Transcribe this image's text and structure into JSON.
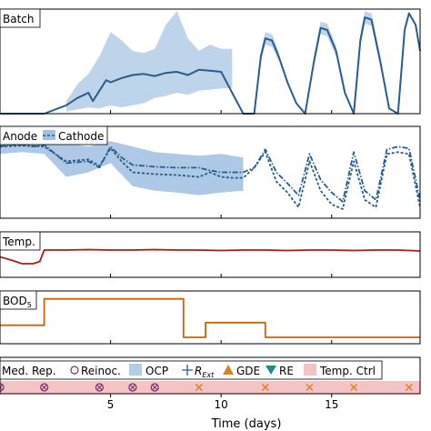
{
  "chart_data": {
    "type": "line",
    "xlabel": "Time (days)",
    "xlim": [
      0,
      19
    ],
    "xticks": [
      5,
      10,
      15
    ],
    "colors": {
      "batch": "#2a5d8c",
      "batch_band": "#b3cde6",
      "anode": "#2a5d8c",
      "anode_band": "#9fc0e0",
      "temp": "#a51e1e",
      "bod": "#c8640a",
      "tempctrl": "#f4c4c4",
      "reinoc": "#7a2d6a",
      "gde": "#d9801f"
    },
    "panels": [
      {
        "label": "Batch",
        "ylim": [
          0,
          1
        ],
        "series": [
          {
            "x": [
              0,
              1,
              2,
              3,
              3.5,
              4,
              4.2,
              4.5,
              4.8,
              5,
              5.5,
              6,
              6.5,
              7,
              7.5,
              8,
              8.5,
              9,
              9.5,
              10,
              10.5,
              11,
              11.5,
              11.8,
              12,
              12.3,
              12.6,
              13,
              13.4,
              13.8,
              14.2,
              14.5,
              14.8,
              15.2,
              15.6,
              16,
              16.3,
              16.5,
              16.8,
              17.2,
              17.6,
              18,
              18.3,
              18.5,
              18.8,
              19
            ],
            "y": [
              0,
              0,
              0,
              0.08,
              0.15,
              0.2,
              0.12,
              0.22,
              0.32,
              0.3,
              0.34,
              0.37,
              0.38,
              0.36,
              0.39,
              0.4,
              0.37,
              0.42,
              0.41,
              0.4,
              0.2,
              0.0,
              0.0,
              0.55,
              0.72,
              0.7,
              0.55,
              0.3,
              0.1,
              0.0,
              0.5,
              0.82,
              0.8,
              0.6,
              0.2,
              0.0,
              0.7,
              0.92,
              0.9,
              0.5,
              0.05,
              0.0,
              0.8,
              0.96,
              0.85,
              0.6
            ]
          }
        ],
        "band": {
          "x": [
            3,
            3.5,
            4,
            4.5,
            5,
            5.5,
            6,
            6.5,
            7,
            7.5,
            8,
            8.5,
            9,
            9.5,
            10,
            10.5
          ],
          "lower": [
            0.02,
            0.04,
            0.06,
            0.05,
            0.08,
            0.06,
            0.08,
            0.1,
            0.15,
            0.17,
            0.2,
            0.18,
            0.22,
            0.23,
            0.24,
            0.25
          ],
          "upper": [
            0.12,
            0.28,
            0.38,
            0.55,
            0.78,
            0.7,
            0.6,
            0.58,
            0.62,
            0.85,
            0.98,
            0.72,
            0.6,
            0.66,
            0.62,
            0.62
          ]
        },
        "local_bands": [
          {
            "x": [
              11.8,
              12,
              12.3,
              12.6
            ],
            "lower": [
              0.5,
              0.66,
              0.64,
              0.5
            ],
            "upper": [
              0.6,
              0.78,
              0.76,
              0.6
            ]
          },
          {
            "x": [
              14.2,
              14.5,
              14.8,
              15.2
            ],
            "lower": [
              0.45,
              0.76,
              0.74,
              0.55
            ],
            "upper": [
              0.55,
              0.88,
              0.86,
              0.65
            ]
          },
          {
            "x": [
              16.3,
              16.5,
              16.8,
              17.2
            ],
            "lower": [
              0.64,
              0.86,
              0.84,
              0.45
            ],
            "upper": [
              0.76,
              0.98,
              0.96,
              0.55
            ]
          }
        ]
      },
      {
        "label": "Anode",
        "legend_entry": "Cathode",
        "ylim": [
          0,
          1
        ],
        "series": [
          {
            "x": [
              0,
              0.5,
              1,
              1.5,
              2,
              3,
              4,
              4.5,
              5,
              5.5,
              6,
              7,
              8,
              9,
              9.5,
              10,
              10.5,
              11,
              11.5,
              12,
              12.5,
              13,
              13.5,
              14,
              14.5,
              15,
              15.5,
              16,
              16.5,
              17,
              17.5,
              18,
              18.5,
              19
            ],
            "y": [
              0.78,
              0.8,
              0.8,
              0.78,
              0.8,
              0.6,
              0.62,
              0.55,
              0.78,
              0.66,
              0.58,
              0.56,
              0.55,
              0.55,
              0.52,
              0.5,
              0.5,
              0.5,
              0.55,
              0.75,
              0.5,
              0.38,
              0.25,
              0.7,
              0.42,
              0.28,
              0.18,
              0.72,
              0.3,
              0.2,
              0.75,
              0.78,
              0.76,
              0.2
            ]
          },
          {
            "x": [
              0,
              1,
              2,
              3,
              4,
              4.5,
              5,
              5.5,
              6,
              7,
              8,
              9,
              9.5,
              10,
              10.5,
              11,
              11.5,
              12,
              12.5,
              13,
              13.5,
              14,
              14.5,
              15,
              15.5,
              16,
              16.5,
              17,
              17.5,
              18,
              18.5,
              19
            ],
            "y": [
              0.78,
              0.79,
              0.78,
              0.62,
              0.64,
              0.57,
              0.76,
              0.62,
              0.5,
              0.48,
              0.47,
              0.45,
              0.5,
              0.45,
              0.44,
              0.44,
              0.55,
              0.72,
              0.4,
              0.28,
              0.12,
              0.62,
              0.3,
              0.15,
              0.1,
              0.62,
              0.2,
              0.12,
              0.7,
              0.72,
              0.7,
              0.12
            ]
          }
        ],
        "band": {
          "x": [
            0,
            1,
            2,
            3,
            4,
            5,
            6,
            7,
            8,
            9,
            10,
            11
          ],
          "lower": [
            0.7,
            0.72,
            0.7,
            0.45,
            0.5,
            0.6,
            0.35,
            0.3,
            0.28,
            0.25,
            0.28,
            0.3
          ],
          "upper": [
            0.86,
            0.86,
            0.86,
            0.82,
            0.78,
            0.84,
            0.78,
            0.72,
            0.7,
            0.68,
            0.7,
            0.66
          ]
        }
      },
      {
        "label": "Temp.",
        "ylim": [
          0,
          1
        ],
        "series": [
          {
            "x": [
              0,
              0.5,
              1,
              1.5,
              1.8,
              2,
              3,
              4,
              5,
              6,
              7,
              8,
              9,
              10,
              11,
              12,
              13,
              14,
              15,
              16,
              17,
              18,
              19
            ],
            "y": [
              0.45,
              0.38,
              0.3,
              0.3,
              0.35,
              0.6,
              0.6,
              0.61,
              0.6,
              0.6,
              0.61,
              0.6,
              0.6,
              0.59,
              0.6,
              0.6,
              0.59,
              0.6,
              0.6,
              0.59,
              0.6,
              0.6,
              0.58
            ]
          }
        ]
      },
      {
        "label": "BOD",
        "label_sub": "5",
        "ylim": [
          0,
          1
        ],
        "series": [
          {
            "x": [
              0,
              2,
              2,
              8.3,
              8.3,
              9.3,
              9.3,
              12,
              12,
              19
            ],
            "y": [
              0.35,
              0.35,
              0.85,
              0.85,
              0.12,
              0.12,
              0.4,
              0.4,
              0.12,
              0.12
            ]
          }
        ]
      }
    ],
    "events": {
      "legend": [
        "Med. Rep.",
        "Reinoc.",
        "OCP",
        "R",
        "Ext",
        "GDE",
        "RE",
        "Temp. Ctrl"
      ],
      "temp_ctrl_span": [
        0,
        19
      ],
      "reinoc_x": [
        0,
        2,
        4.5,
        6,
        7
      ],
      "gde_x": [
        9,
        12,
        14,
        16,
        18.5
      ]
    }
  }
}
